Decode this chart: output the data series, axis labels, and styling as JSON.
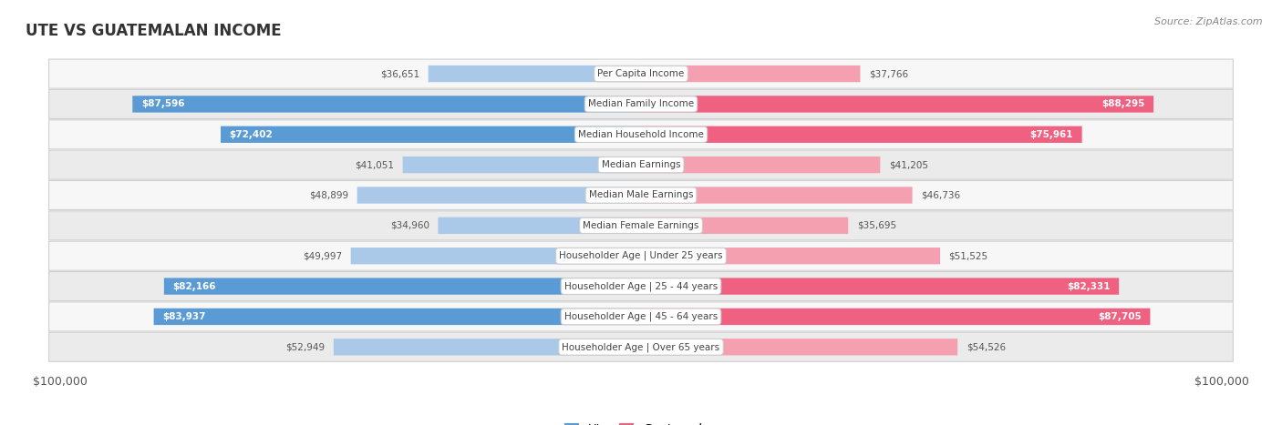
{
  "title": "UTE VS GUATEMALAN INCOME",
  "source": "Source: ZipAtlas.com",
  "categories": [
    "Per Capita Income",
    "Median Family Income",
    "Median Household Income",
    "Median Earnings",
    "Median Male Earnings",
    "Median Female Earnings",
    "Householder Age | Under 25 years",
    "Householder Age | 25 - 44 years",
    "Householder Age | 45 - 64 years",
    "Householder Age | Over 65 years"
  ],
  "ute_values": [
    36651,
    87596,
    72402,
    41051,
    48899,
    34960,
    49997,
    82166,
    83937,
    52949
  ],
  "guatemalan_values": [
    37766,
    88295,
    75961,
    41205,
    46736,
    35695,
    51525,
    82331,
    87705,
    54526
  ],
  "ute_labels": [
    "$36,651",
    "$87,596",
    "$72,402",
    "$41,051",
    "$48,899",
    "$34,960",
    "$49,997",
    "$82,166",
    "$83,937",
    "$52,949"
  ],
  "guatemalan_labels": [
    "$37,766",
    "$88,295",
    "$75,961",
    "$41,205",
    "$46,736",
    "$35,695",
    "$51,525",
    "$82,331",
    "$87,705",
    "$54,526"
  ],
  "max_value": 100000,
  "ute_color_light": "#aac8e8",
  "ute_color_strong": "#5b9bd5",
  "guatemalan_color_light": "#f4a0b0",
  "guatemalan_color_strong": "#f06080",
  "row_bg_light": "#f7f7f7",
  "row_bg_dark": "#ebebeb",
  "fig_bg": "#ffffff",
  "figsize": [
    14.06,
    4.67
  ],
  "dpi": 100,
  "inside_threshold": 55000
}
